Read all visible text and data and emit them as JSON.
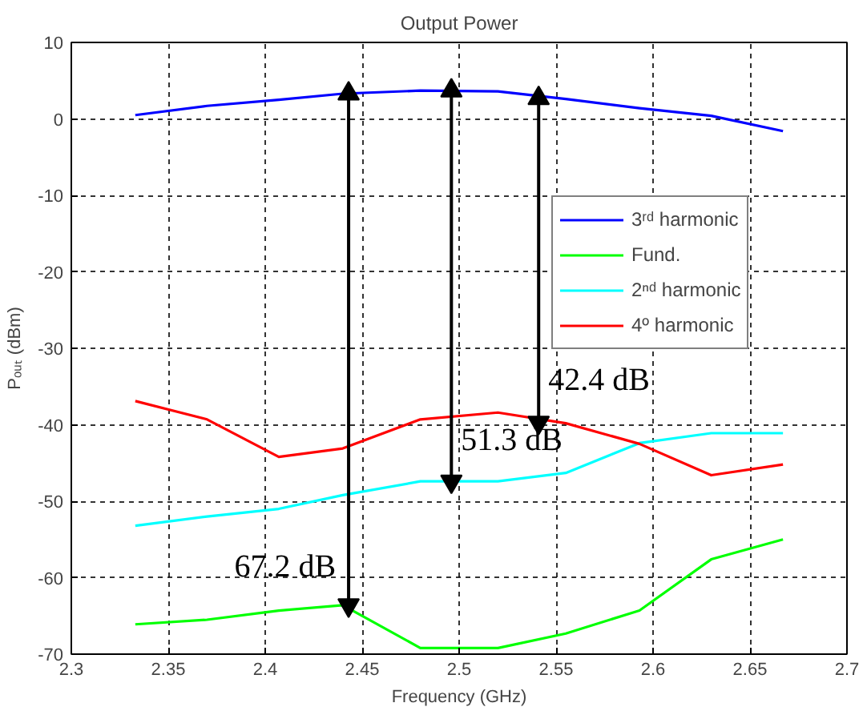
{
  "chart_data": {
    "type": "line",
    "title": "Output Power",
    "xlabel": "Frequency (GHz)",
    "ylabel": "Pₒᵤₜ (dBm)",
    "x": [
      2.333,
      2.37,
      2.407,
      2.44,
      2.48,
      2.52,
      2.555,
      2.593,
      2.63,
      2.667
    ],
    "series": [
      {
        "name": "3ʳᵈ harmonic",
        "color": "#0000ff",
        "values": [
          0.5,
          1.7,
          2.5,
          3.3,
          3.7,
          3.6,
          2.6,
          1.4,
          0.4,
          -1.6
        ]
      },
      {
        "name": "Fund.",
        "color": "#00ff00",
        "values": [
          -66.1,
          -65.5,
          -64.3,
          -63.6,
          -69.2,
          -69.2,
          -67.3,
          -64.3,
          -57.6,
          -55.0
        ]
      },
      {
        "name": "2ⁿᵈ harmonic",
        "color": "#00ffff",
        "values": [
          -53.2,
          -52.0,
          -51.0,
          -49.2,
          -47.4,
          -47.4,
          -46.3,
          -42.4,
          -41.1,
          -41.1
        ]
      },
      {
        "name": "4º harmonic",
        "color": "#ff0000",
        "values": [
          -36.9,
          -39.3,
          -44.2,
          -43.1,
          -39.3,
          -38.4,
          -39.8,
          -42.5,
          -46.6,
          -45.2
        ]
      },
      {
        "type": "line",
        "color": "#000000",
        "marker": "triangle",
        "x": [
          2.443,
          2.443
        ],
        "values": [
          3.3,
          -63.6
        ]
      },
      {
        "type": "line",
        "color": "#000000",
        "marker": "triangle",
        "x": [
          2.496,
          2.496
        ],
        "values": [
          3.7,
          -47.4
        ]
      },
      {
        "type": "line",
        "color": "#000000",
        "marker": "triangle",
        "x": [
          2.541,
          2.541
        ],
        "values": [
          2.7,
          -39.7
        ]
      }
    ],
    "annotations": [
      {
        "text": "67.2 dB",
        "x": 2.443,
        "y": -58.6
      },
      {
        "text": "51.3 dB",
        "x": 2.496,
        "y": -42.0
      },
      {
        "text": "42.4 dB",
        "x": 2.541,
        "y": -34.2
      }
    ],
    "xlim": [
      2.3,
      2.7
    ],
    "xticks": [
      2.3,
      2.35,
      2.4,
      2.45,
      2.5,
      2.55,
      2.6,
      2.65,
      2.7
    ],
    "ylim": [
      -70,
      10
    ],
    "yticks": [
      -70,
      -60,
      -50,
      -40,
      -30,
      -20,
      -10,
      0,
      10
    ],
    "grid": true,
    "legend": "right",
    "line_style": "solid"
  }
}
